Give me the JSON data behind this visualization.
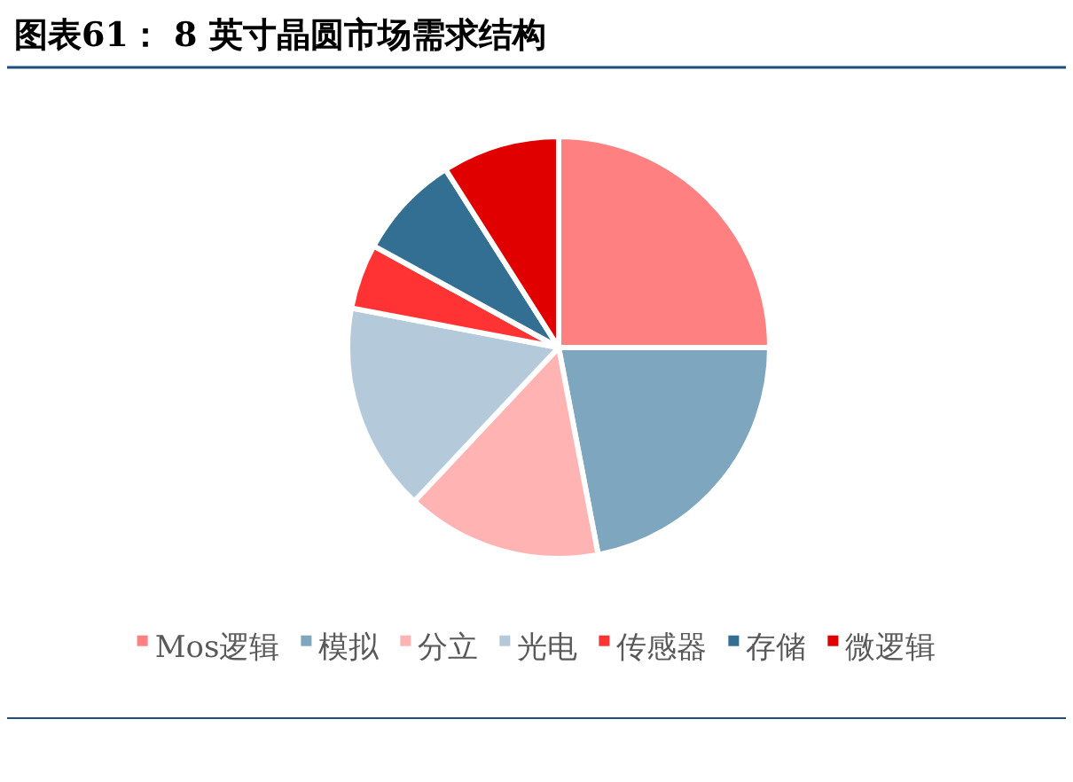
{
  "chart_data": {
    "type": "pie",
    "title": "图表61：  8 英寸晶圆市场需求结构",
    "categories": [
      "Mos逻辑",
      "模拟",
      "分立",
      "光电",
      "传感器",
      "存储",
      "微逻辑"
    ],
    "values": [
      25,
      22,
      15,
      16,
      5,
      8,
      9
    ],
    "colors": [
      "#ff8080",
      "#7fa6bf",
      "#ffb3b3",
      "#b4cada",
      "#ff3333",
      "#336e93",
      "#e00000"
    ],
    "legend": "bottom"
  }
}
